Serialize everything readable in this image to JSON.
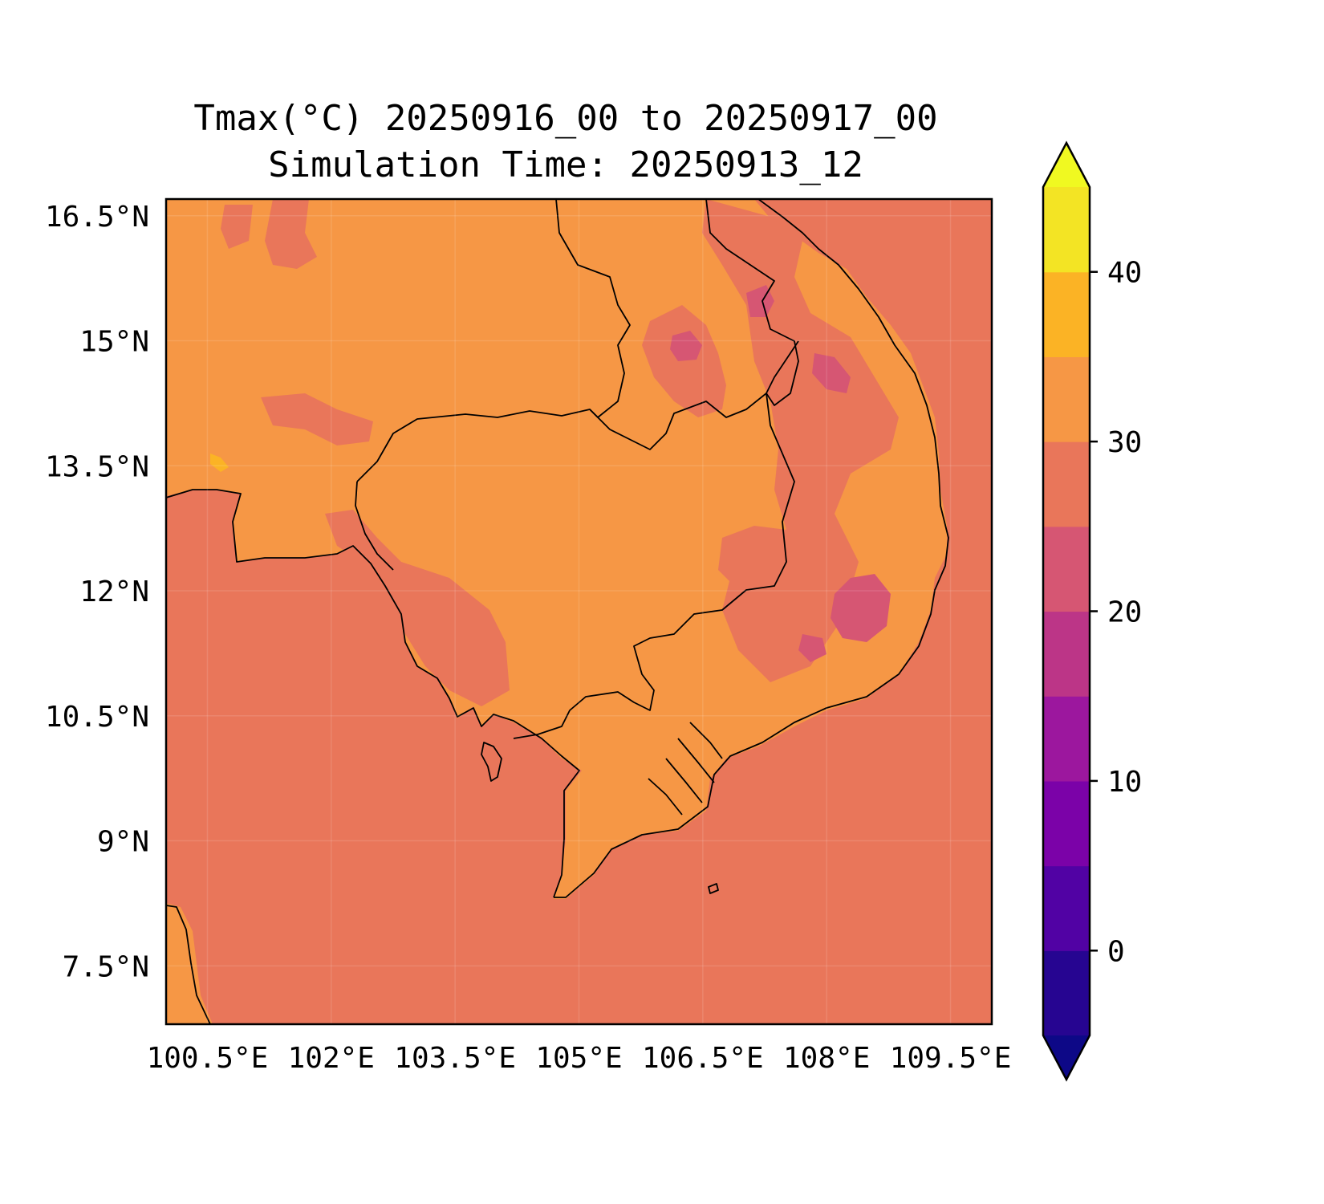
{
  "title": {
    "line1": "Tmax(°C) 20250916_00 to 20250917_00",
    "line2": "Simulation Time: 20250913_12"
  },
  "map": {
    "lon_range": [
      100.0,
      110.0
    ],
    "lat_range": [
      6.8,
      16.7
    ],
    "lat_ticks": [
      {
        "value": 16.5,
        "label": "16.5°N"
      },
      {
        "value": 15.0,
        "label": "15°N"
      },
      {
        "value": 13.5,
        "label": "13.5°N"
      },
      {
        "value": 12.0,
        "label": "12°N"
      },
      {
        "value": 10.5,
        "label": "10.5°N"
      },
      {
        "value": 9.0,
        "label": "9°N"
      },
      {
        "value": 7.5,
        "label": "7.5°N"
      }
    ],
    "lon_ticks": [
      {
        "value": 100.5,
        "label": "100.5°E"
      },
      {
        "value": 102.0,
        "label": "102°E"
      },
      {
        "value": 103.5,
        "label": "103.5°E"
      },
      {
        "value": 105.0,
        "label": "105°E"
      },
      {
        "value": 106.5,
        "label": "106.5°E"
      },
      {
        "value": 108.0,
        "label": "108°E"
      },
      {
        "value": 109.5,
        "label": "109.5°E"
      }
    ],
    "gridlines": true,
    "field_colors": {
      "sea": "#e9765a",
      "land_main": "#f69745",
      "cool_patch": "#e9765a",
      "cold_patch": "#d65673",
      "warm_patch": "#fbb325"
    }
  },
  "colorbar": {
    "levels": [
      -5,
      0,
      5,
      10,
      15,
      20,
      25,
      30,
      35,
      40,
      45
    ],
    "colors": [
      "#260591",
      "#5102a4",
      "#7b02a8",
      "#9c179e",
      "#bc3587",
      "#d65673",
      "#e9765a",
      "#f69745",
      "#fbb325",
      "#f3e424"
    ],
    "extend_low_color": "#0d0887",
    "extend_high_color": "#f0f921",
    "ticks": [
      {
        "value": 0,
        "label": "0"
      },
      {
        "value": 10,
        "label": "10"
      },
      {
        "value": 20,
        "label": "20"
      },
      {
        "value": 30,
        "label": "30"
      },
      {
        "value": 40,
        "label": "40"
      }
    ]
  }
}
